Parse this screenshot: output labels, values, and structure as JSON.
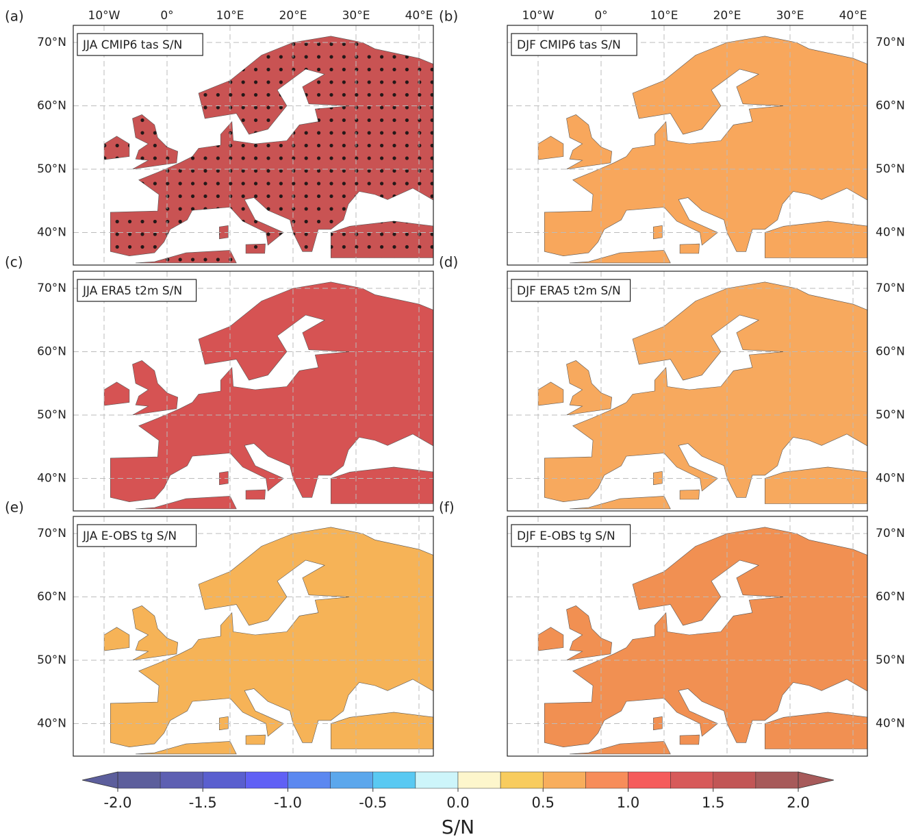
{
  "panels": [
    {
      "label": "(a)",
      "title": "JJA CMIP6 tas S/N",
      "color": "#c95353"
    },
    {
      "label": "(b)",
      "title": "DJF CMIP6 tas S/N",
      "color": "#f8a75c"
    },
    {
      "label": "(c)",
      "title": "JJA ERA5 t2m S/N",
      "color": "#d65353"
    },
    {
      "label": "(d)",
      "title": "DJF ERA5 t2m S/N",
      "color": "#f7a95e"
    },
    {
      "label": "(e)",
      "title": "JJA E-OBS tg S/N",
      "color": "#f6b357"
    },
    {
      "label": "(f)",
      "title": "DJF E-OBS tg S/N",
      "color": "#f19052"
    }
  ],
  "lon_ticks": [
    "10°W",
    "0°",
    "10°E",
    "20°E",
    "30°E",
    "40°E"
  ],
  "lat_ticks": [
    "70°N",
    "60°N",
    "50°N",
    "40°N"
  ],
  "colorbar": {
    "bounds": [
      -2,
      -1.75,
      -1.5,
      -1.25,
      -1,
      -0.75,
      -0.5,
      -0.25,
      0,
      0.25,
      0.5,
      0.75,
      1,
      1.25,
      1.5,
      1.75,
      2
    ],
    "colors": [
      "#5c5e9c",
      "#5d5fb2",
      "#5a5fcf",
      "#6060f5",
      "#5b88f0",
      "#5ba7ec",
      "#59c9f2",
      "#cdf5fa",
      "#fdf6cc",
      "#f8cc5e",
      "#f8ae5c",
      "#f78d5a",
      "#f55b5b",
      "#d75a5a",
      "#c25656",
      "#a75a5a"
    ],
    "ticks": [
      {
        "value": -2,
        "label": "-2.0"
      },
      {
        "value": -1.5,
        "label": "-1.5"
      },
      {
        "value": -1,
        "label": "-1.0"
      },
      {
        "value": -0.5,
        "label": "-0.5"
      },
      {
        "value": 0,
        "label": "0.0"
      },
      {
        "value": 0.5,
        "label": "0.5"
      },
      {
        "value": 1,
        "label": "1.0"
      },
      {
        "value": 1.5,
        "label": "1.5"
      },
      {
        "value": 2,
        "label": "2.0"
      }
    ],
    "label": "S/N"
  }
}
